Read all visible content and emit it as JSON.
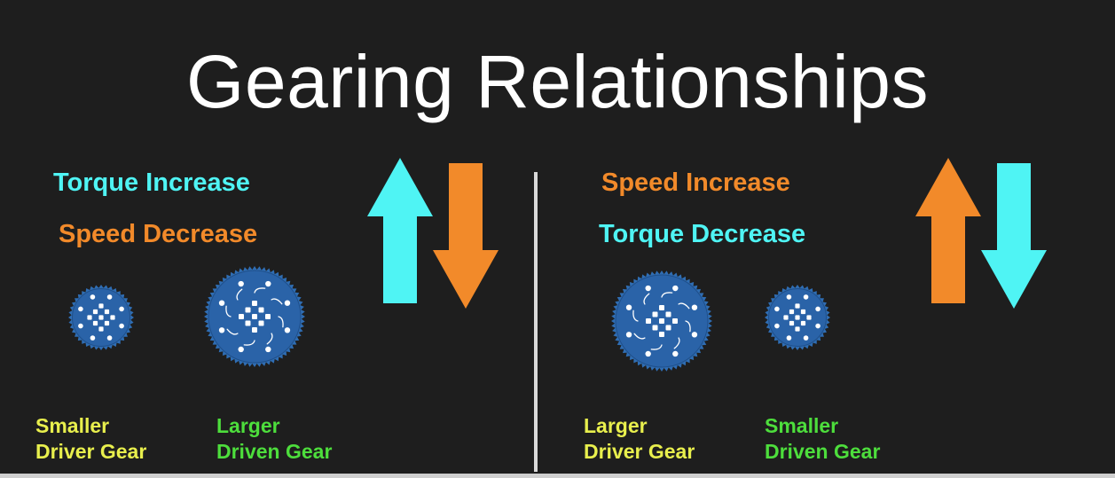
{
  "title": "Gearing Relationships",
  "left": {
    "line1": "Torque Increase",
    "line2": "Speed Decrease",
    "gear_a_line1": "Smaller",
    "gear_a_line2": "Driver Gear",
    "gear_b_line1": "Larger",
    "gear_b_line2": "Driven Gear"
  },
  "right": {
    "line1": "Speed Increase",
    "line2": "Torque Decrease",
    "gear_a_line1": "Larger",
    "gear_a_line2": "Driver Gear",
    "gear_b_line1": "Smaller",
    "gear_b_line2": "Driven Gear"
  },
  "colors": {
    "cyan": "#4ff4f4",
    "orange": "#f28a2a",
    "yellow": "#e8ef4d",
    "green": "#4dde3c",
    "gear_blue": "#2f6db3"
  },
  "icons": [
    "up-arrow-icon",
    "down-arrow-icon",
    "gear-icon"
  ]
}
